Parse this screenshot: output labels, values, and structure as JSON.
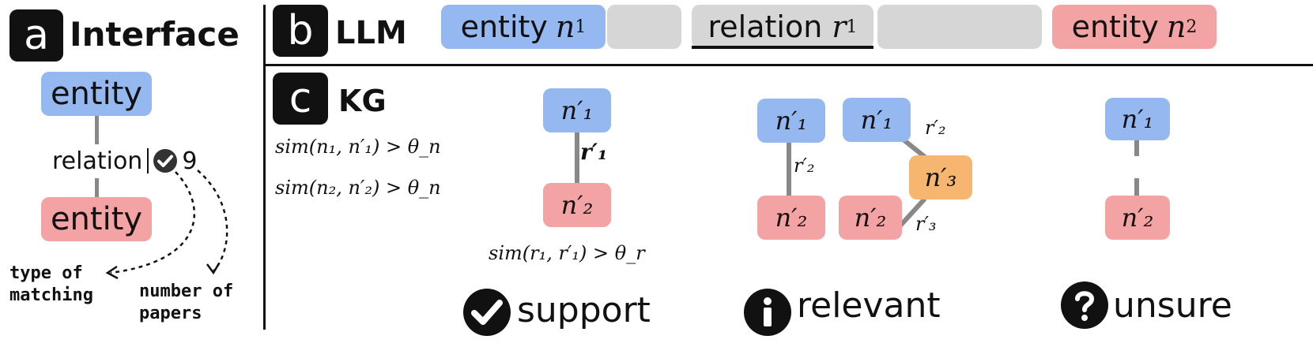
{
  "panel_a": {
    "badge": "a",
    "title": "Interface",
    "entity_top": "entity",
    "relation": "relation",
    "count": "9",
    "entity_bottom": "entity",
    "ann_type_line1": "type of",
    "ann_type_line2": "matching",
    "ann_num_line1": "number of",
    "ann_num_line2": "papers"
  },
  "panel_b": {
    "badge": "b",
    "title": "LLM",
    "entity1_word": "entity",
    "entity1_sym": "n",
    "entity1_sub": "1",
    "relation_word": "relation",
    "relation_sym": "r",
    "relation_sub": "1",
    "entity2_word": "entity",
    "entity2_sym": "n",
    "entity2_sub": "2"
  },
  "panel_c": {
    "badge": "c",
    "title": "KG",
    "cond1": "sim(n₁, n′₁) > θ_n",
    "cond2": "sim(n₂, n′₂) > θ_n",
    "support": {
      "n1": "n′₁",
      "r1": "r′₁",
      "n2": "n′₂",
      "cond": "sim(r₁, r′₁) > θ_r",
      "label": "support"
    },
    "relevant": {
      "left_n1": "n′₁",
      "left_r2": "r′₂",
      "left_n2": "n′₂",
      "right_n1": "n′₁",
      "right_r2": "r′₂",
      "right_n3": "n′₃",
      "right_r3": "r′₃",
      "right_n2": "n′₂",
      "label": "relevant"
    },
    "unsure": {
      "n1": "n′₁",
      "n2": "n′₂",
      "label": "unsure"
    }
  },
  "colors": {
    "entity_head": "#94b8ef",
    "entity_tail": "#f3a3a3",
    "intermediate": "#f6b66f",
    "token_bg": "#d6d6d6",
    "edge": "#888888"
  }
}
